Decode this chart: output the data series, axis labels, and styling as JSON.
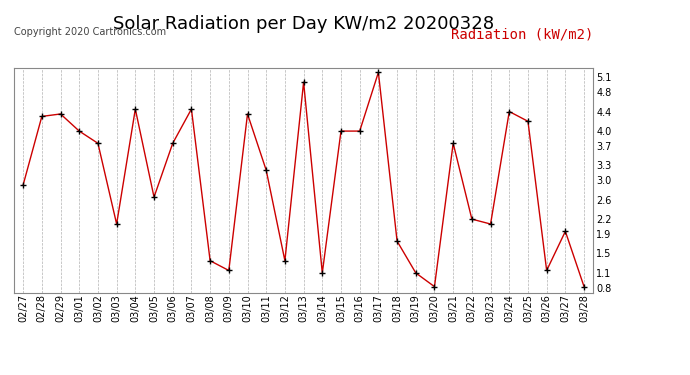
{
  "title": "Solar Radiation per Day KW/m2 20200328",
  "copyright_text": "Copyright 2020 Cartronics.com",
  "legend_label": "Radiation (kW/m2)",
  "dates": [
    "02/27",
    "02/28",
    "02/29",
    "03/01",
    "03/02",
    "03/03",
    "03/04",
    "03/05",
    "03/06",
    "03/07",
    "03/08",
    "03/09",
    "03/10",
    "03/11",
    "03/12",
    "03/13",
    "03/14",
    "03/15",
    "03/16",
    "03/17",
    "03/18",
    "03/19",
    "03/20",
    "03/21",
    "03/22",
    "03/23",
    "03/24",
    "03/25",
    "03/26",
    "03/27",
    "03/28"
  ],
  "values": [
    2.9,
    4.3,
    4.35,
    4.0,
    3.75,
    2.1,
    4.45,
    2.65,
    3.75,
    4.45,
    1.35,
    1.15,
    4.35,
    3.2,
    1.35,
    5.0,
    1.1,
    4.0,
    4.0,
    5.2,
    1.75,
    1.1,
    0.82,
    3.75,
    2.2,
    2.1,
    4.4,
    4.2,
    1.15,
    1.95,
    0.82
  ],
  "line_color": "#cc0000",
  "marker_color": "#000000",
  "background_color": "#ffffff",
  "grid_color": "#aaaaaa",
  "title_fontsize": 13,
  "copyright_fontsize": 7,
  "legend_fontsize": 10,
  "tick_fontsize": 7,
  "ylim": [
    0.7,
    5.3
  ],
  "yticks": [
    0.8,
    1.1,
    1.5,
    1.9,
    2.2,
    2.6,
    3.0,
    3.3,
    3.7,
    4.0,
    4.4,
    4.8,
    5.1
  ],
  "legend_color": "#cc0000",
  "title_color": "#000000"
}
